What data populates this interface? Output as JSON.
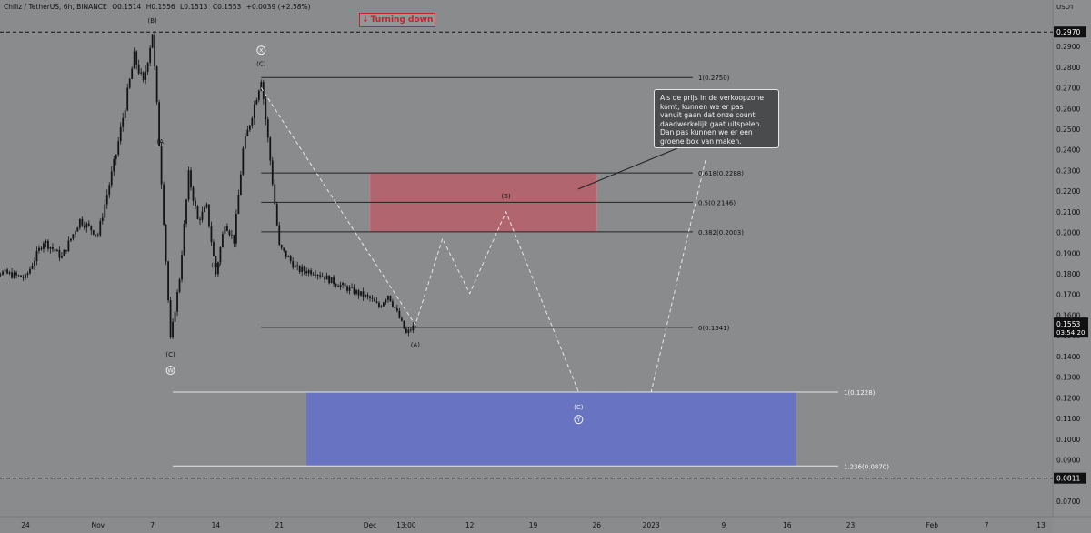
{
  "header": {
    "symbol": "Chiliz / TetherUS, 6h, BINANCE",
    "open": "O0.1514",
    "high": "H0.1556",
    "low": "L0.1513",
    "close": "C0.1553",
    "change": "+0.0039 (+2.58%)"
  },
  "badge": {
    "arrow": "↓",
    "text": "Turning down"
  },
  "note": {
    "lines": [
      "Als de prijs in de verkoopzone",
      "komt, kunnen we er pas",
      "vanuit gaan dat onze count",
      "daadwerkelijk gaat uitspelen.",
      "Dan pas kunnen we er een",
      "groene box van maken."
    ]
  },
  "colors": {
    "background": "#8a8b8d",
    "candle": "#141414",
    "sell_zone": "#b5606a",
    "target_zone": "#6672c4",
    "level_line": "#222222",
    "dashed_path": "#e8e8e8",
    "price_tag": "#111111"
  },
  "chart_data": {
    "type": "candlestick",
    "y_axis": {
      "unit": "USDT",
      "ylim": [
        0.066,
        0.3015
      ],
      "ticks": [
        "0.2900",
        "0.2800",
        "0.2700",
        "0.2600",
        "0.2500",
        "0.2400",
        "0.2300",
        "0.2200",
        "0.2100",
        "0.2000",
        "0.1900",
        "0.1800",
        "0.1700",
        "0.1600",
        "0.1500",
        "0.1400",
        "0.1300",
        "0.1200",
        "0.1100",
        "0.1000",
        "0.0900",
        "0.0800",
        "0.0700"
      ]
    },
    "x_axis": {
      "ticks": [
        {
          "label": "24",
          "date": "2022-10-24"
        },
        {
          "label": "Nov",
          "date": "2022-11-01"
        },
        {
          "label": "7",
          "date": "2022-11-07"
        },
        {
          "label": "14",
          "date": "2022-11-14"
        },
        {
          "label": "21",
          "date": "2022-11-21"
        },
        {
          "label": "Dec",
          "date": "2022-12-01"
        },
        {
          "label": "13:00",
          "date": "2022-12-05"
        },
        {
          "label": "12",
          "date": "2022-12-12"
        },
        {
          "label": "19",
          "date": "2022-12-19"
        },
        {
          "label": "26",
          "date": "2022-12-26"
        },
        {
          "label": "2023",
          "date": "2023-01-01"
        },
        {
          "label": "9",
          "date": "2023-01-09"
        },
        {
          "label": "16",
          "date": "2023-01-16"
        },
        {
          "label": "23",
          "date": "2023-01-23"
        },
        {
          "label": "Feb",
          "date": "2023-02-01"
        },
        {
          "label": "7",
          "date": "2023-02-07"
        },
        {
          "label": "13",
          "date": "2023-02-13"
        }
      ]
    },
    "price_path": [
      [
        "2022-10-19",
        0.174
      ],
      [
        "2022-10-21",
        0.181
      ],
      [
        "2022-10-24",
        0.178
      ],
      [
        "2022-10-26",
        0.196
      ],
      [
        "2022-10-28",
        0.188
      ],
      [
        "2022-10-30",
        0.206
      ],
      [
        "2022-11-01",
        0.199
      ],
      [
        "2022-11-03",
        0.238
      ],
      [
        "2022-11-05",
        0.285
      ],
      [
        "2022-11-06",
        0.272
      ],
      [
        "2022-11-07",
        0.297
      ],
      [
        "2022-11-08",
        0.225
      ],
      [
        "2022-11-09",
        0.148
      ],
      [
        "2022-11-10",
        0.178
      ],
      [
        "2022-11-11",
        0.228
      ],
      [
        "2022-11-12",
        0.206
      ],
      [
        "2022-11-13",
        0.212
      ],
      [
        "2022-11-14",
        0.18
      ],
      [
        "2022-11-15",
        0.205
      ],
      [
        "2022-11-16",
        0.196
      ],
      [
        "2022-11-17",
        0.24
      ],
      [
        "2022-11-19",
        0.275
      ],
      [
        "2022-11-20",
        0.235
      ],
      [
        "2022-11-21",
        0.193
      ],
      [
        "2022-11-23",
        0.182
      ],
      [
        "2022-11-25",
        0.181
      ],
      [
        "2022-11-27",
        0.176
      ],
      [
        "2022-11-29",
        0.172
      ],
      [
        "2022-12-01",
        0.168
      ],
      [
        "2022-12-02",
        0.164
      ],
      [
        "2022-12-03",
        0.17
      ],
      [
        "2022-12-04",
        0.161
      ],
      [
        "2022-12-05",
        0.151
      ],
      [
        "2022-12-06",
        0.1553
      ]
    ],
    "current_price": {
      "value": "0.1553",
      "countdown": "03:54:20"
    },
    "marked_prices": [
      "0.2970",
      "0.0811"
    ],
    "fib_levels": [
      {
        "label": "1(0.2750)",
        "value": 0.275
      },
      {
        "label": "0.618(0.2288)",
        "value": 0.2288
      },
      {
        "label": "0.5(0.2146)",
        "value": 0.2146
      },
      {
        "label": "0.382(0.2003)",
        "value": 0.2003
      },
      {
        "label": "0(0.1541)",
        "value": 0.1541
      }
    ],
    "target_levels": [
      {
        "label": "1(0.1228)",
        "value": 0.1228
      },
      {
        "label": "1.236(0.0870)",
        "value": 0.087
      }
    ],
    "sell_zone": {
      "top": 0.2288,
      "bottom": 0.2003,
      "from": "2022-12-01",
      "to": "2022-12-26"
    },
    "target_zone": {
      "top": 0.1228,
      "bottom": 0.087,
      "from": "2022-11-24",
      "to": "2023-01-17"
    },
    "projection_path": [
      [
        "2022-11-19",
        0.27
      ],
      [
        "2022-12-06",
        0.1553
      ],
      [
        "2022-12-09",
        0.197
      ],
      [
        "2022-12-12",
        0.1705
      ],
      [
        "2022-12-16",
        0.21
      ],
      [
        "2022-12-24",
        0.1228
      ],
      [
        "2023-01-01",
        0.1228
      ],
      [
        "2023-01-07",
        0.235
      ]
    ],
    "wave_labels": [
      {
        "text": "(B)",
        "date": "2022-11-07",
        "value": 0.3015
      },
      {
        "text": "(A)",
        "date": "2022-11-08",
        "value": 0.243
      },
      {
        "text": "(C)",
        "date": "2022-11-09",
        "value": 0.14
      },
      {
        "text": "(B)",
        "date": "2022-11-14",
        "value": 0.183
      },
      {
        "text": "(C)",
        "date": "2022-11-19",
        "value": 0.2805
      },
      {
        "text": "(A)",
        "date": "2022-12-06",
        "value": 0.1445
      },
      {
        "text": "(B)",
        "date": "2022-12-16",
        "value": 0.2165
      },
      {
        "text": "(C)",
        "date": "2022-12-24",
        "value": 0.1145
      }
    ],
    "wave_circles": [
      {
        "text": "X",
        "date": "2022-11-19",
        "value": 0.2882
      },
      {
        "text": "W",
        "date": "2022-11-09",
        "value": 0.1333
      },
      {
        "text": "Y",
        "date": "2022-12-24",
        "value": 0.1095
      }
    ]
  }
}
